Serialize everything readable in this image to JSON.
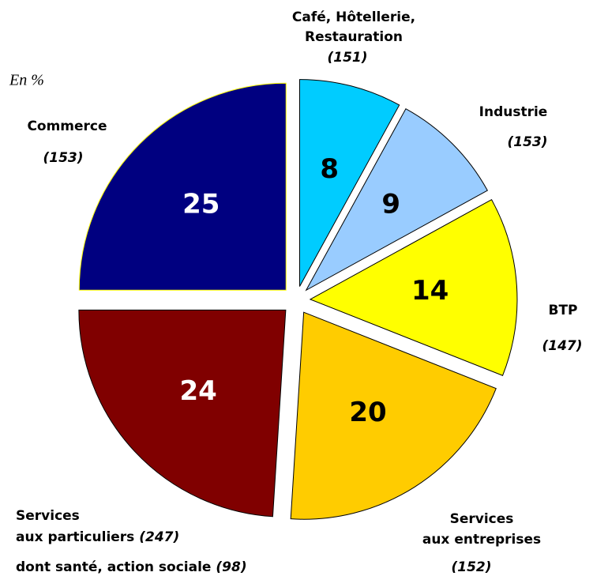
{
  "chart_data": {
    "type": "pie",
    "note": "En %",
    "categories": [
      [
        "Café, Hôtellerie,",
        "Restauration"
      ],
      [
        "Industrie"
      ],
      [
        "BTP"
      ],
      [
        "Services",
        "aux entreprises"
      ],
      [
        "Services",
        "aux particuliers"
      ],
      [
        "Commerce"
      ]
    ],
    "counts": [
      "(151)",
      "(153)",
      "(147)",
      "(152)",
      "(247)",
      "(153)"
    ],
    "values": [
      8,
      9,
      14,
      20,
      24,
      25
    ],
    "colors": [
      "#00ccff",
      "#99ccff",
      "#ffff00",
      "#ffcc00",
      "#800000",
      "#000080"
    ],
    "annotation": {
      "text": "dont santé, action sociale",
      "count": "(98)"
    }
  }
}
